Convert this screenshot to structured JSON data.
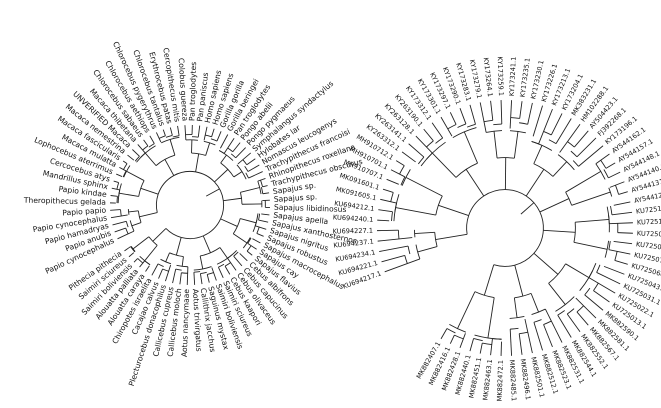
{
  "trees": [
    {
      "labels": [
        "Papio cynocephalus",
        "Papio anubis",
        "Papio hamadryas",
        "Papio cynocephalus",
        "Papio papio",
        "Theropithecus gelada",
        "Papio kindae",
        "Mandrillus sphinx",
        "Cercocebus atys",
        "Lophocebus aterrimus",
        "Macaca mulatta",
        "Macaca fascicularis",
        "Macaca nemestrina",
        "UNVERIFIED Macaca",
        "Macaca thibetana",
        "Chlorocebus sabaeus",
        "Chlorocebus aethiops",
        "Chlorocebus pygerythrus",
        "Chlorocebus tantalus",
        "Erythrocebus patas",
        "Cercopithecus mitis",
        "Colobus guereza",
        "Pan troglodytes",
        "Pan paniscus",
        "Homo sapiens",
        "Homo sapiens",
        "Gorilla gorilla",
        "Gorilla beringei",
        "Pan troglodytes",
        "Pongo abelii",
        "Pongo pygmaeus",
        "Symphalangus syndactylus",
        "Hylobates lar",
        "Nomascus leucogenys",
        "Trachypithecus francoisi",
        "Rhinopithecus roxellana",
        "Trachypithecus obscurus",
        "Sapajus sp.",
        "Sapajus sp.",
        "Sapajus libidinosus",
        "Sapajus apella",
        "Sapajus xanthosternos",
        "Sapajus nigritus",
        "Sapajus robustus",
        "Sapajus macrocephalus",
        "Sapajus cay",
        "Sapajus flavius",
        "Cebus albifrons",
        "Cebus capucinus",
        "Cebus olivaceus",
        "Cebus kaapori",
        "Saimiri sciureus",
        "Saimiri boliviensis",
        "Saguinus mystax",
        "Callithrix jacchus",
        "Aotus trivirgatus",
        "Aotus nancymaae",
        "Callicebus moloch",
        "Callicebus cupreus",
        "Plecturocebus donacophilus",
        "Cacajao calvus",
        "Chiropotes israelita",
        "Alouatta caraya",
        "Alouatta palliata",
        "Saimiri boliviensis",
        "Saimiri sciureus",
        "Pithecia pithecia"
      ]
    },
    {
      "labels": [
        "KU694217.1",
        "KU694221.1",
        "KU694234.1",
        "KU694237.1",
        "KU694227.1",
        "KU694240.1",
        "KU694212.1",
        "MK091605.1",
        "MK091601.1",
        "MH910707.1",
        "MH910701.1",
        "MH910712.1",
        "KY263312.1",
        "KY263141.1",
        "KY263128.1",
        "KY263190.1",
        "KY173312.1",
        "KY173301.1",
        "KY173297.1",
        "KY173290.1",
        "KY173283.1",
        "KY173279.1",
        "KY173264.1",
        "KY173259.1",
        "KY173241.1",
        "KY173235.1",
        "KY173230.1",
        "KY173226.1",
        "KY173213.1",
        "KY173204.1",
        "MK383231.1",
        "HM102288.1",
        "AY504423.1",
        "FJ392268.1",
        "KY173196.1",
        "AY544162.1",
        "AY544157.1",
        "AY544148.1",
        "AY544140.1",
        "AY544131.1",
        "AY544122.1",
        "KU725111.1",
        "KU725104.1",
        "KU725096.1",
        "KU725081.1",
        "KU725072.1",
        "KU725060.1",
        "KU725043.1",
        "KU725031.1",
        "KU725022.1",
        "KU725013.1",
        "MK882590.1",
        "MK882581.1",
        "MK882567.1",
        "MK882552.1",
        "MK882544.1",
        "MK882531.1",
        "MK882523.1",
        "MK882512.1",
        "MK882501.1",
        "MK882496.1",
        "MK882485.1",
        "MK882472.1",
        "MK882463.1",
        "MK882451.1",
        "MK882440.1",
        "MK882428.1",
        "MK882416.1",
        "MK882407.1"
      ]
    }
  ]
}
